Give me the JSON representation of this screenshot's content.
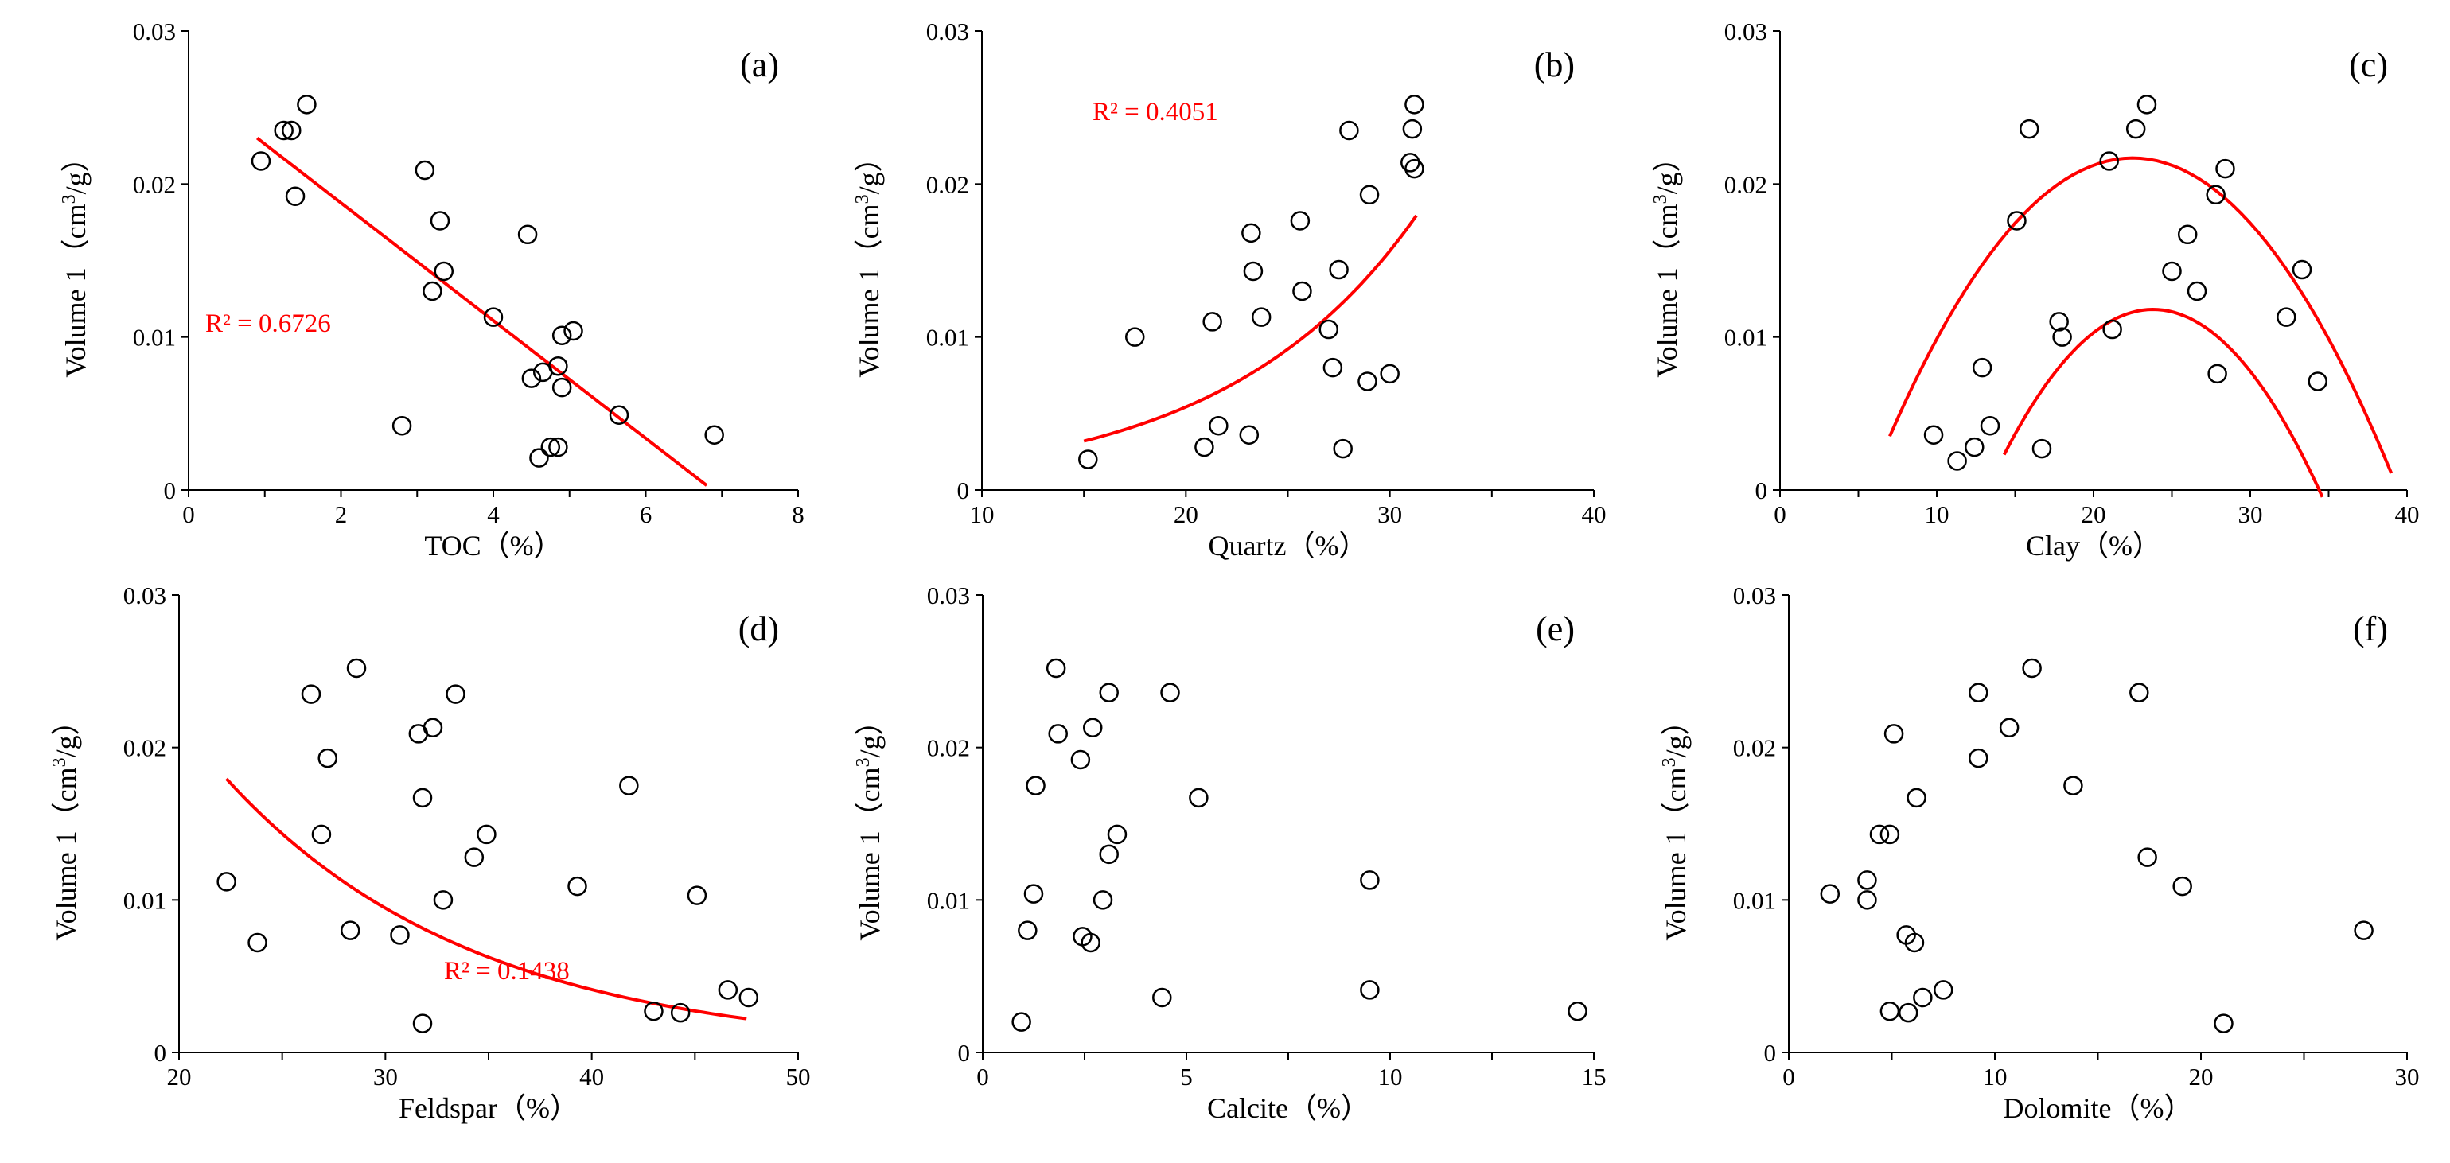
{
  "colors": {
    "axis": "#000000",
    "points": "#000000",
    "fit": "#ff0000"
  },
  "chart_data": [
    {
      "type": "scatter",
      "panel": "(a)",
      "xlabel": "TOC（%）",
      "ylabel": "Volume 1（cm³/g）",
      "xlim": [
        0,
        8
      ],
      "xticks": [
        0,
        2,
        4,
        6,
        8
      ],
      "ylim": [
        0,
        0.03
      ],
      "yticks": [
        0,
        0.01,
        0.02,
        0.03
      ],
      "r2_label": "R² = 0.6726",
      "points": [
        [
          0.95,
          0.0215
        ],
        [
          1.25,
          0.0235
        ],
        [
          1.35,
          0.0235
        ],
        [
          1.55,
          0.0252
        ],
        [
          1.4,
          0.0192
        ],
        [
          3.1,
          0.0209
        ],
        [
          3.3,
          0.0176
        ],
        [
          3.35,
          0.0143
        ],
        [
          3.2,
          0.013
        ],
        [
          4.45,
          0.0167
        ],
        [
          4.0,
          0.0113
        ],
        [
          4.5,
          0.0073
        ],
        [
          4.65,
          0.0077
        ],
        [
          4.85,
          0.0081
        ],
        [
          4.9,
          0.0101
        ],
        [
          5.05,
          0.0104
        ],
        [
          4.9,
          0.0067
        ],
        [
          5.65,
          0.0049
        ],
        [
          6.9,
          0.0036
        ],
        [
          2.8,
          0.0042
        ],
        [
          4.6,
          0.0021
        ],
        [
          4.75,
          0.0028
        ],
        [
          4.85,
          0.0028
        ]
      ],
      "fit": {
        "kind": "linear",
        "x": [
          0.9,
          6.8
        ],
        "y": [
          0.023,
          0.0003
        ]
      }
    },
    {
      "type": "scatter",
      "panel": "(b)",
      "xlabel": "Quartz（%）",
      "ylabel": "Volume 1（cm³/g）",
      "xlim": [
        10,
        40
      ],
      "xticks": [
        10,
        20,
        30,
        40
      ],
      "ylim": [
        0,
        0.03
      ],
      "yticks": [
        0,
        0.01,
        0.02,
        0.03
      ],
      "r2_label": "R² = 0.4051",
      "points": [
        [
          15.2,
          0.002
        ],
        [
          17.5,
          0.01
        ],
        [
          20.9,
          0.0028
        ],
        [
          21.6,
          0.0042
        ],
        [
          21.3,
          0.011
        ],
        [
          23.1,
          0.0036
        ],
        [
          23.2,
          0.0168
        ],
        [
          23.3,
          0.0143
        ],
        [
          23.7,
          0.0113
        ],
        [
          25.6,
          0.0176
        ],
        [
          25.7,
          0.013
        ],
        [
          27.0,
          0.0105
        ],
        [
          27.2,
          0.008
        ],
        [
          27.5,
          0.0144
        ],
        [
          27.7,
          0.0027
        ],
        [
          28.0,
          0.0235
        ],
        [
          28.9,
          0.0071
        ],
        [
          29.0,
          0.0193
        ],
        [
          30.0,
          0.0076
        ],
        [
          31.0,
          0.0214
        ],
        [
          31.1,
          0.0236
        ],
        [
          31.2,
          0.0252
        ],
        [
          31.2,
          0.021
        ]
      ],
      "fit": {
        "kind": "exponential",
        "x": [
          15.0,
          31.3
        ],
        "a": 0.000654,
        "b": 0.1058
      }
    },
    {
      "type": "scatter",
      "panel": "(c)",
      "xlabel": "Clay（%）",
      "ylabel": "Volume 1（cm³/g）",
      "xlim": [
        0,
        40
      ],
      "xticks": [
        0,
        10,
        20,
        30,
        40
      ],
      "ylim": [
        0,
        0.03
      ],
      "yticks": [
        0,
        0.01,
        0.02,
        0.03
      ],
      "points": [
        [
          9.8,
          0.0036
        ],
        [
          11.3,
          0.0019
        ],
        [
          12.4,
          0.0028
        ],
        [
          12.9,
          0.008
        ],
        [
          13.4,
          0.0042
        ],
        [
          15.1,
          0.0176
        ],
        [
          15.9,
          0.0236
        ],
        [
          16.7,
          0.0027
        ],
        [
          17.8,
          0.011
        ],
        [
          18.0,
          0.01
        ],
        [
          21.0,
          0.0215
        ],
        [
          21.2,
          0.0105
        ],
        [
          22.7,
          0.0236
        ],
        [
          23.4,
          0.0252
        ],
        [
          25.0,
          0.0143
        ],
        [
          26.0,
          0.0167
        ],
        [
          26.6,
          0.013
        ],
        [
          27.8,
          0.0193
        ],
        [
          27.9,
          0.0076
        ],
        [
          28.4,
          0.021
        ],
        [
          32.3,
          0.0113
        ],
        [
          33.3,
          0.0144
        ],
        [
          34.3,
          0.0071
        ]
      ],
      "fit": [
        {
          "kind": "quadratic",
          "x": [
            7.0,
            39.0
          ],
          "vertex": [
            22.5,
            0.0217
          ],
          "k": 7.57e-05
        },
        {
          "kind": "quadratic",
          "x": [
            14.3,
            34.6
          ],
          "vertex": [
            23.8,
            0.0118
          ],
          "k": 0.0001051
        }
      ]
    },
    {
      "type": "scatter",
      "panel": "(d)",
      "xlabel": "Feldspar（%）",
      "ylabel": "Volume 1（cm³/g）",
      "xlim": [
        20,
        50
      ],
      "xticks": [
        20,
        30,
        40,
        50
      ],
      "ylim": [
        0,
        0.03
      ],
      "yticks": [
        0,
        0.01,
        0.02,
        0.03
      ],
      "r2_label": "R² = 0.1438",
      "points": [
        [
          22.3,
          0.0112
        ],
        [
          23.8,
          0.0072
        ],
        [
          26.4,
          0.0235
        ],
        [
          26.9,
          0.0143
        ],
        [
          27.2,
          0.0193
        ],
        [
          28.3,
          0.008
        ],
        [
          28.6,
          0.0252
        ],
        [
          30.7,
          0.0077
        ],
        [
          31.6,
          0.0209
        ],
        [
          31.8,
          0.0167
        ],
        [
          31.8,
          0.0019
        ],
        [
          32.3,
          0.0213
        ],
        [
          32.8,
          0.01
        ],
        [
          33.4,
          0.0235
        ],
        [
          34.3,
          0.0128
        ],
        [
          34.9,
          0.0143
        ],
        [
          39.3,
          0.0109
        ],
        [
          41.8,
          0.0175
        ],
        [
          43.0,
          0.0027
        ],
        [
          44.3,
          0.0026
        ],
        [
          45.1,
          0.0103
        ],
        [
          46.6,
          0.0041
        ],
        [
          47.6,
          0.0036
        ]
      ],
      "fit": {
        "kind": "exponential",
        "x": [
          22.3,
          47.5
        ],
        "a": 0.1145,
        "b": -0.0831
      }
    },
    {
      "type": "scatter",
      "panel": "(e)",
      "xlabel": "Calcite（%）",
      "ylabel": "Volume 1（cm³/g）",
      "xlim": [
        0,
        15
      ],
      "xticks": [
        0,
        5,
        10,
        15
      ],
      "ylim": [
        0,
        0.03
      ],
      "yticks": [
        0,
        0.01,
        0.02,
        0.03
      ],
      "points": [
        [
          0.95,
          0.002
        ],
        [
          1.1,
          0.008
        ],
        [
          1.25,
          0.0104
        ],
        [
          1.3,
          0.0175
        ],
        [
          1.8,
          0.0252
        ],
        [
          1.85,
          0.0209
        ],
        [
          2.4,
          0.0192
        ],
        [
          2.45,
          0.0076
        ],
        [
          2.65,
          0.0072
        ],
        [
          2.7,
          0.0213
        ],
        [
          2.95,
          0.01
        ],
        [
          3.1,
          0.0236
        ],
        [
          3.1,
          0.013
        ],
        [
          3.3,
          0.0143
        ],
        [
          4.4,
          0.0036
        ],
        [
          4.6,
          0.0236
        ],
        [
          5.3,
          0.0167
        ],
        [
          9.5,
          0.0113
        ],
        [
          9.5,
          0.0041
        ],
        [
          14.6,
          0.0027
        ]
      ]
    },
    {
      "type": "scatter",
      "panel": "(f)",
      "xlabel": "Dolomite（%）",
      "ylabel": "Volume 1（cm³/g）",
      "xlim": [
        0,
        30
      ],
      "xticks": [
        0,
        10,
        20,
        30
      ],
      "ylim": [
        0,
        0.03
      ],
      "yticks": [
        0,
        0.01,
        0.02,
        0.03
      ],
      "points": [
        [
          2.0,
          0.0104
        ],
        [
          3.8,
          0.0113
        ],
        [
          3.8,
          0.01
        ],
        [
          4.4,
          0.0143
        ],
        [
          4.9,
          0.0143
        ],
        [
          4.9,
          0.0027
        ],
        [
          5.1,
          0.0209
        ],
        [
          5.7,
          0.0077
        ],
        [
          5.8,
          0.0026
        ],
        [
          6.1,
          0.0072
        ],
        [
          6.2,
          0.0167
        ],
        [
          6.5,
          0.0036
        ],
        [
          7.5,
          0.0041
        ],
        [
          9.2,
          0.0236
        ],
        [
          9.2,
          0.0193
        ],
        [
          10.7,
          0.0213
        ],
        [
          11.8,
          0.0252
        ],
        [
          13.8,
          0.0175
        ],
        [
          17.0,
          0.0236
        ],
        [
          17.4,
          0.0128
        ],
        [
          19.1,
          0.0109
        ],
        [
          21.1,
          0.0019
        ],
        [
          27.9,
          0.008
        ]
      ]
    }
  ]
}
